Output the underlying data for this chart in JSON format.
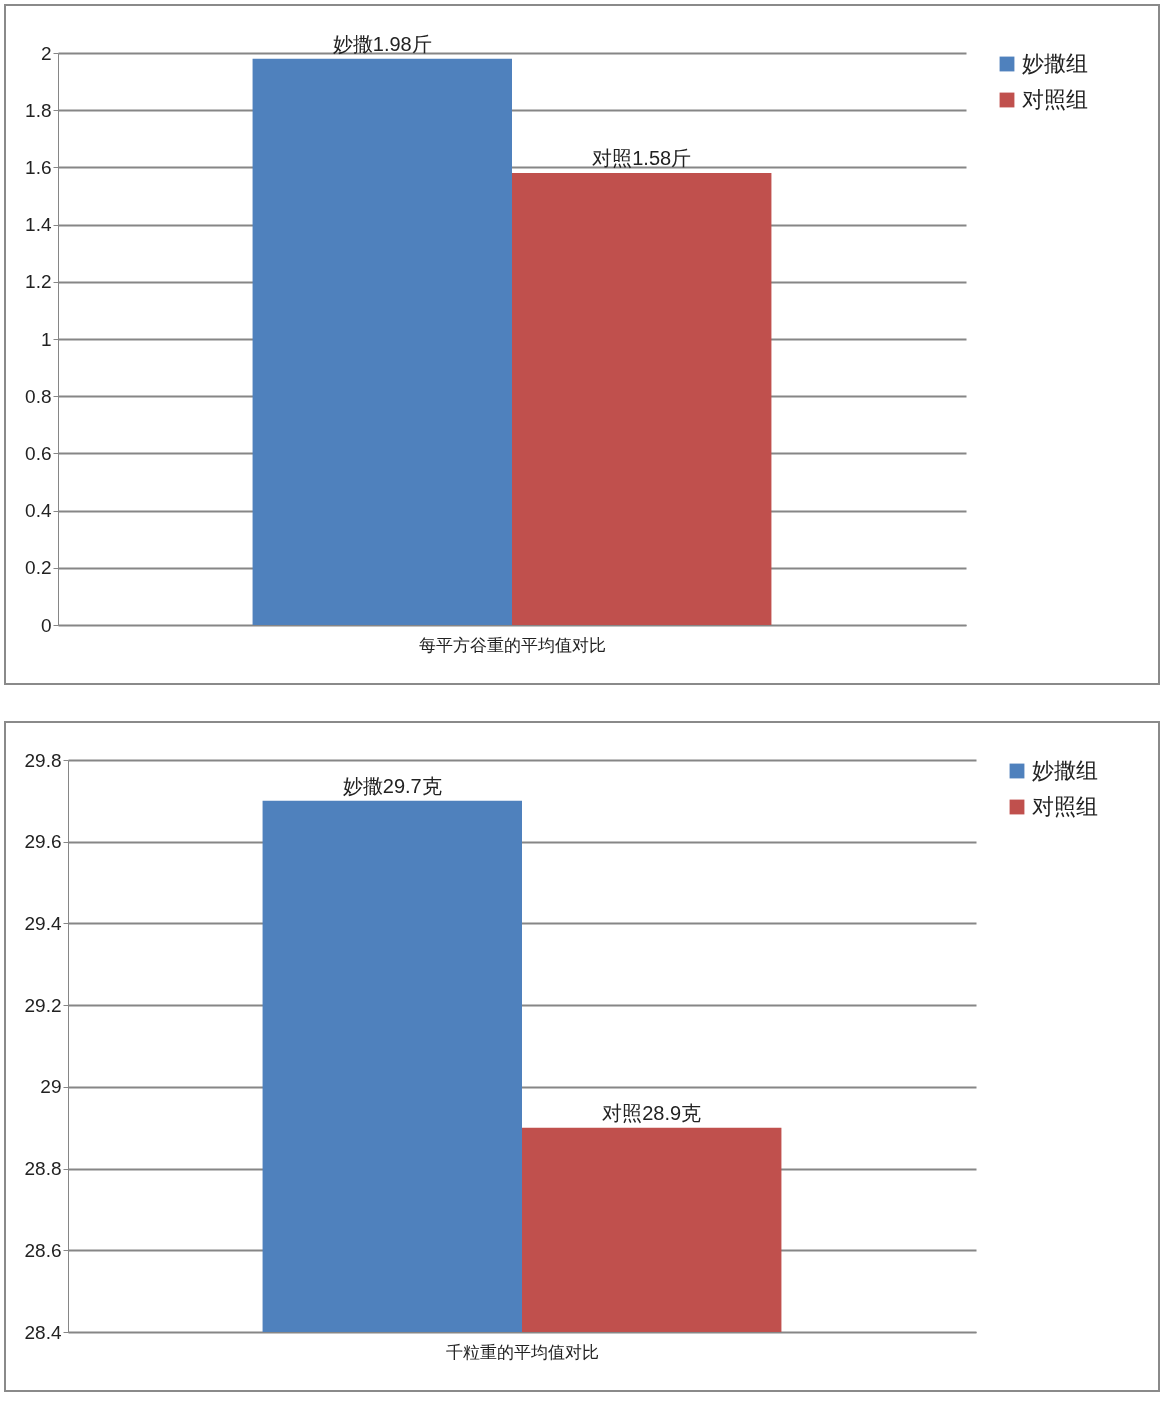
{
  "chart_data": [
    {
      "type": "bar",
      "categories": [
        "每平方谷重的平均值对比"
      ],
      "series": [
        {
          "name": "妙撒组",
          "color": "#4f81bd",
          "values": [
            1.98
          ],
          "value_labels": [
            "妙撒1.98斤"
          ]
        },
        {
          "name": "对照组",
          "color": "#c0504d",
          "values": [
            1.58
          ],
          "value_labels": [
            "对照1.58斤"
          ]
        }
      ],
      "ylim": [
        0,
        2
      ],
      "yticks": [
        0,
        0.2,
        0.4,
        0.6,
        0.8,
        1,
        1.2,
        1.4,
        1.6,
        1.8,
        2
      ],
      "grid": "y",
      "legend": "right"
    },
    {
      "type": "bar",
      "categories": [
        "千粒重的平均值对比"
      ],
      "series": [
        {
          "name": "妙撒组",
          "color": "#4f81bd",
          "values": [
            29.7
          ],
          "value_labels": [
            "妙撒29.7克"
          ]
        },
        {
          "name": "对照组",
          "color": "#c0504d",
          "values": [
            28.9
          ],
          "value_labels": [
            "对照28.9克"
          ]
        }
      ],
      "ylim": [
        28.4,
        29.8
      ],
      "yticks": [
        28.4,
        28.6,
        28.8,
        29,
        29.2,
        29.4,
        29.6,
        29.8
      ],
      "grid": "y",
      "legend": "right"
    }
  ]
}
